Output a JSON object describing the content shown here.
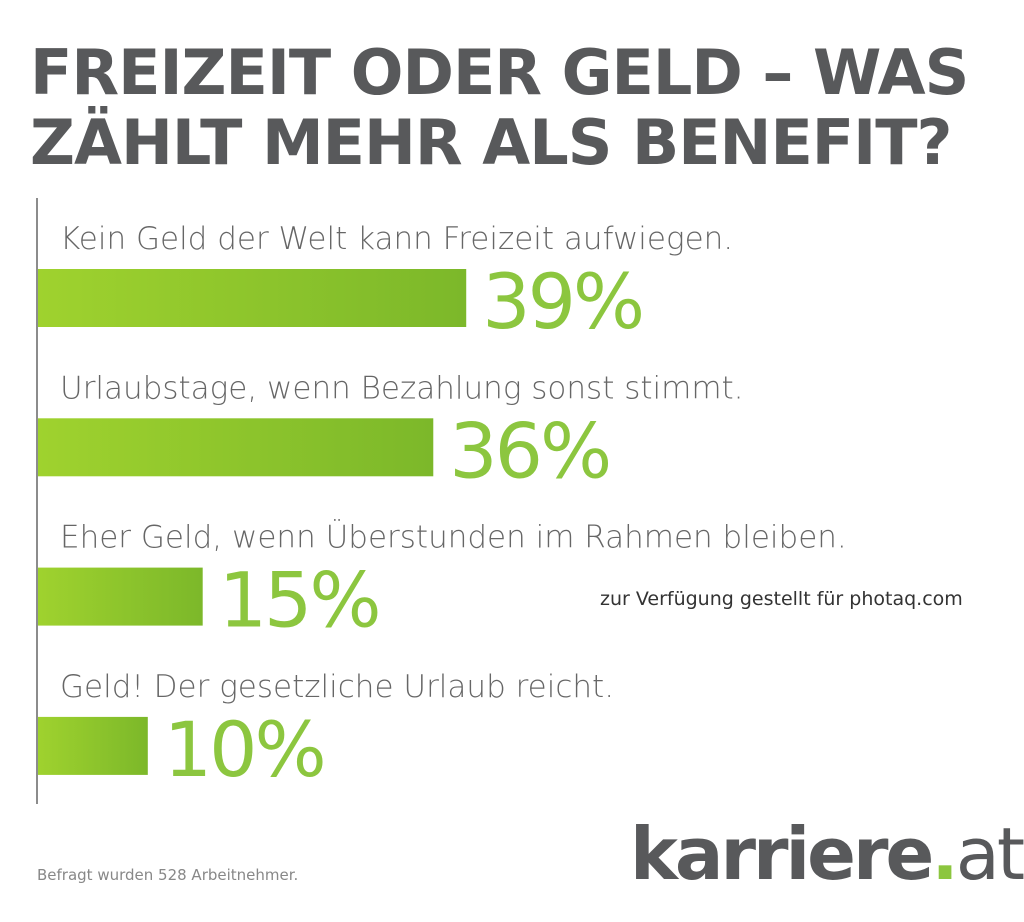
{
  "title": {
    "line1": "FREIZEIT ODER GELD – WAS",
    "line2": "ZÄHLT MEHR ALS BENEFIT?"
  },
  "chart_data": {
    "type": "bar",
    "orientation": "horizontal",
    "title": "FREIZEIT ODER GELD – WAS ZÄHLT MEHR ALS BENEFIT?",
    "categories": [
      "Kein Geld der Welt kann Freizeit aufwiegen.",
      "Urlaubstage, wenn Bezahlung sonst stimmt.",
      "Eher Geld, wenn Überstunden im Rahmen bleiben.",
      "Geld! Der gesetzliche Urlaub reicht."
    ],
    "values": [
      39,
      36,
      15,
      10
    ],
    "data_labels": [
      "39%",
      "36%",
      "15%",
      "10%"
    ],
    "unit": "%",
    "xlim": [
      0,
      100
    ],
    "grid": false,
    "bar_color": "#8cc63f",
    "bar_color_gradient_end": "#7cb82a",
    "label_color": "#8cc63f"
  },
  "footnote": "Befragt wurden 528 Arbeitnehmer.",
  "logo": {
    "name": "karriere",
    "dot": ".",
    "tld": "at"
  },
  "watermark": "zur Verfügung gestellt für photaq.com"
}
